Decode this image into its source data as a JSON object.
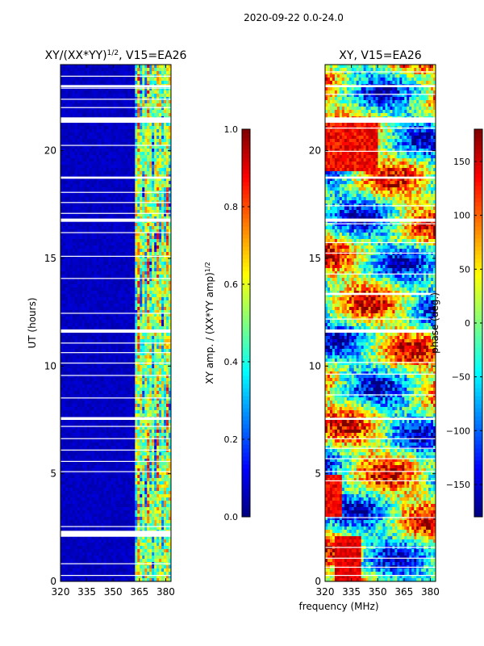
{
  "suptitle": "2020-09-22 0.0-24.0",
  "colors": {
    "missing": "#ffffff",
    "frame": "#000000"
  },
  "chart_data": [
    {
      "type": "heatmap",
      "title_pre": "XY/(XX*YY)",
      "title_sup": "1/2",
      "title_post": ", V15=EA26",
      "xlabel": "",
      "ylabel": "UT (hours)",
      "xlim": [
        320,
        383
      ],
      "ylim": [
        0,
        24
      ],
      "xticks": [
        320,
        335,
        350,
        365,
        380
      ],
      "yticks": [
        0,
        5,
        10,
        15,
        20
      ],
      "colorbar": {
        "label_pre": "XY amp. / (XX*YY amp)",
        "label_sup": "1/2",
        "range": [
          0,
          1
        ],
        "ticks": [
          "0.0",
          "0.2",
          "0.4",
          "0.6",
          "0.8",
          "1.0"
        ],
        "tick_values": [
          0,
          0.2,
          0.4,
          0.6,
          0.8,
          1.0
        ],
        "colormap": "jet"
      },
      "gaps_hours": [
        [
          2.1,
          2.35
        ],
        [
          7.5,
          7.6
        ],
        [
          11.55,
          11.7
        ],
        [
          16.7,
          16.85
        ],
        [
          18.7,
          18.8
        ],
        [
          21.3,
          21.55
        ],
        [
          22.95,
          23.05
        ]
      ],
      "description": "normalized XY amplitude per frequency channel vs UT; low (~0.05) below ~362 MHz, elevated 0.2-0.7 at 362-383 MHz"
    },
    {
      "type": "heatmap",
      "title_pre": "XY, V15=EA26",
      "title_sup": "",
      "title_post": "",
      "xlabel": "frequency (MHz)",
      "ylabel": "",
      "xlim": [
        320,
        383
      ],
      "ylim": [
        0,
        24
      ],
      "xticks": [
        320,
        335,
        350,
        365,
        380
      ],
      "yticks": [
        0,
        5,
        10,
        15,
        20
      ],
      "colorbar": {
        "label_pre": "phase (deg.)",
        "label_sup": "",
        "range": [
          -180,
          180
        ],
        "ticks": [
          "−150",
          "−100",
          "−50",
          "0",
          "50",
          "100",
          "150"
        ],
        "tick_values": [
          -150,
          -100,
          -50,
          0,
          50,
          100,
          150
        ],
        "colormap": "jet"
      },
      "gaps_hours": [
        [
          7.5,
          7.6
        ],
        [
          11.55,
          11.7
        ],
        [
          13.3,
          13.4
        ],
        [
          16.7,
          16.85
        ],
        [
          18.7,
          18.8
        ],
        [
          21.3,
          21.55
        ],
        [
          22.95,
          23.05
        ]
      ],
      "description": "XY phase in degrees per frequency channel vs UT; spans -180 to 180"
    }
  ]
}
